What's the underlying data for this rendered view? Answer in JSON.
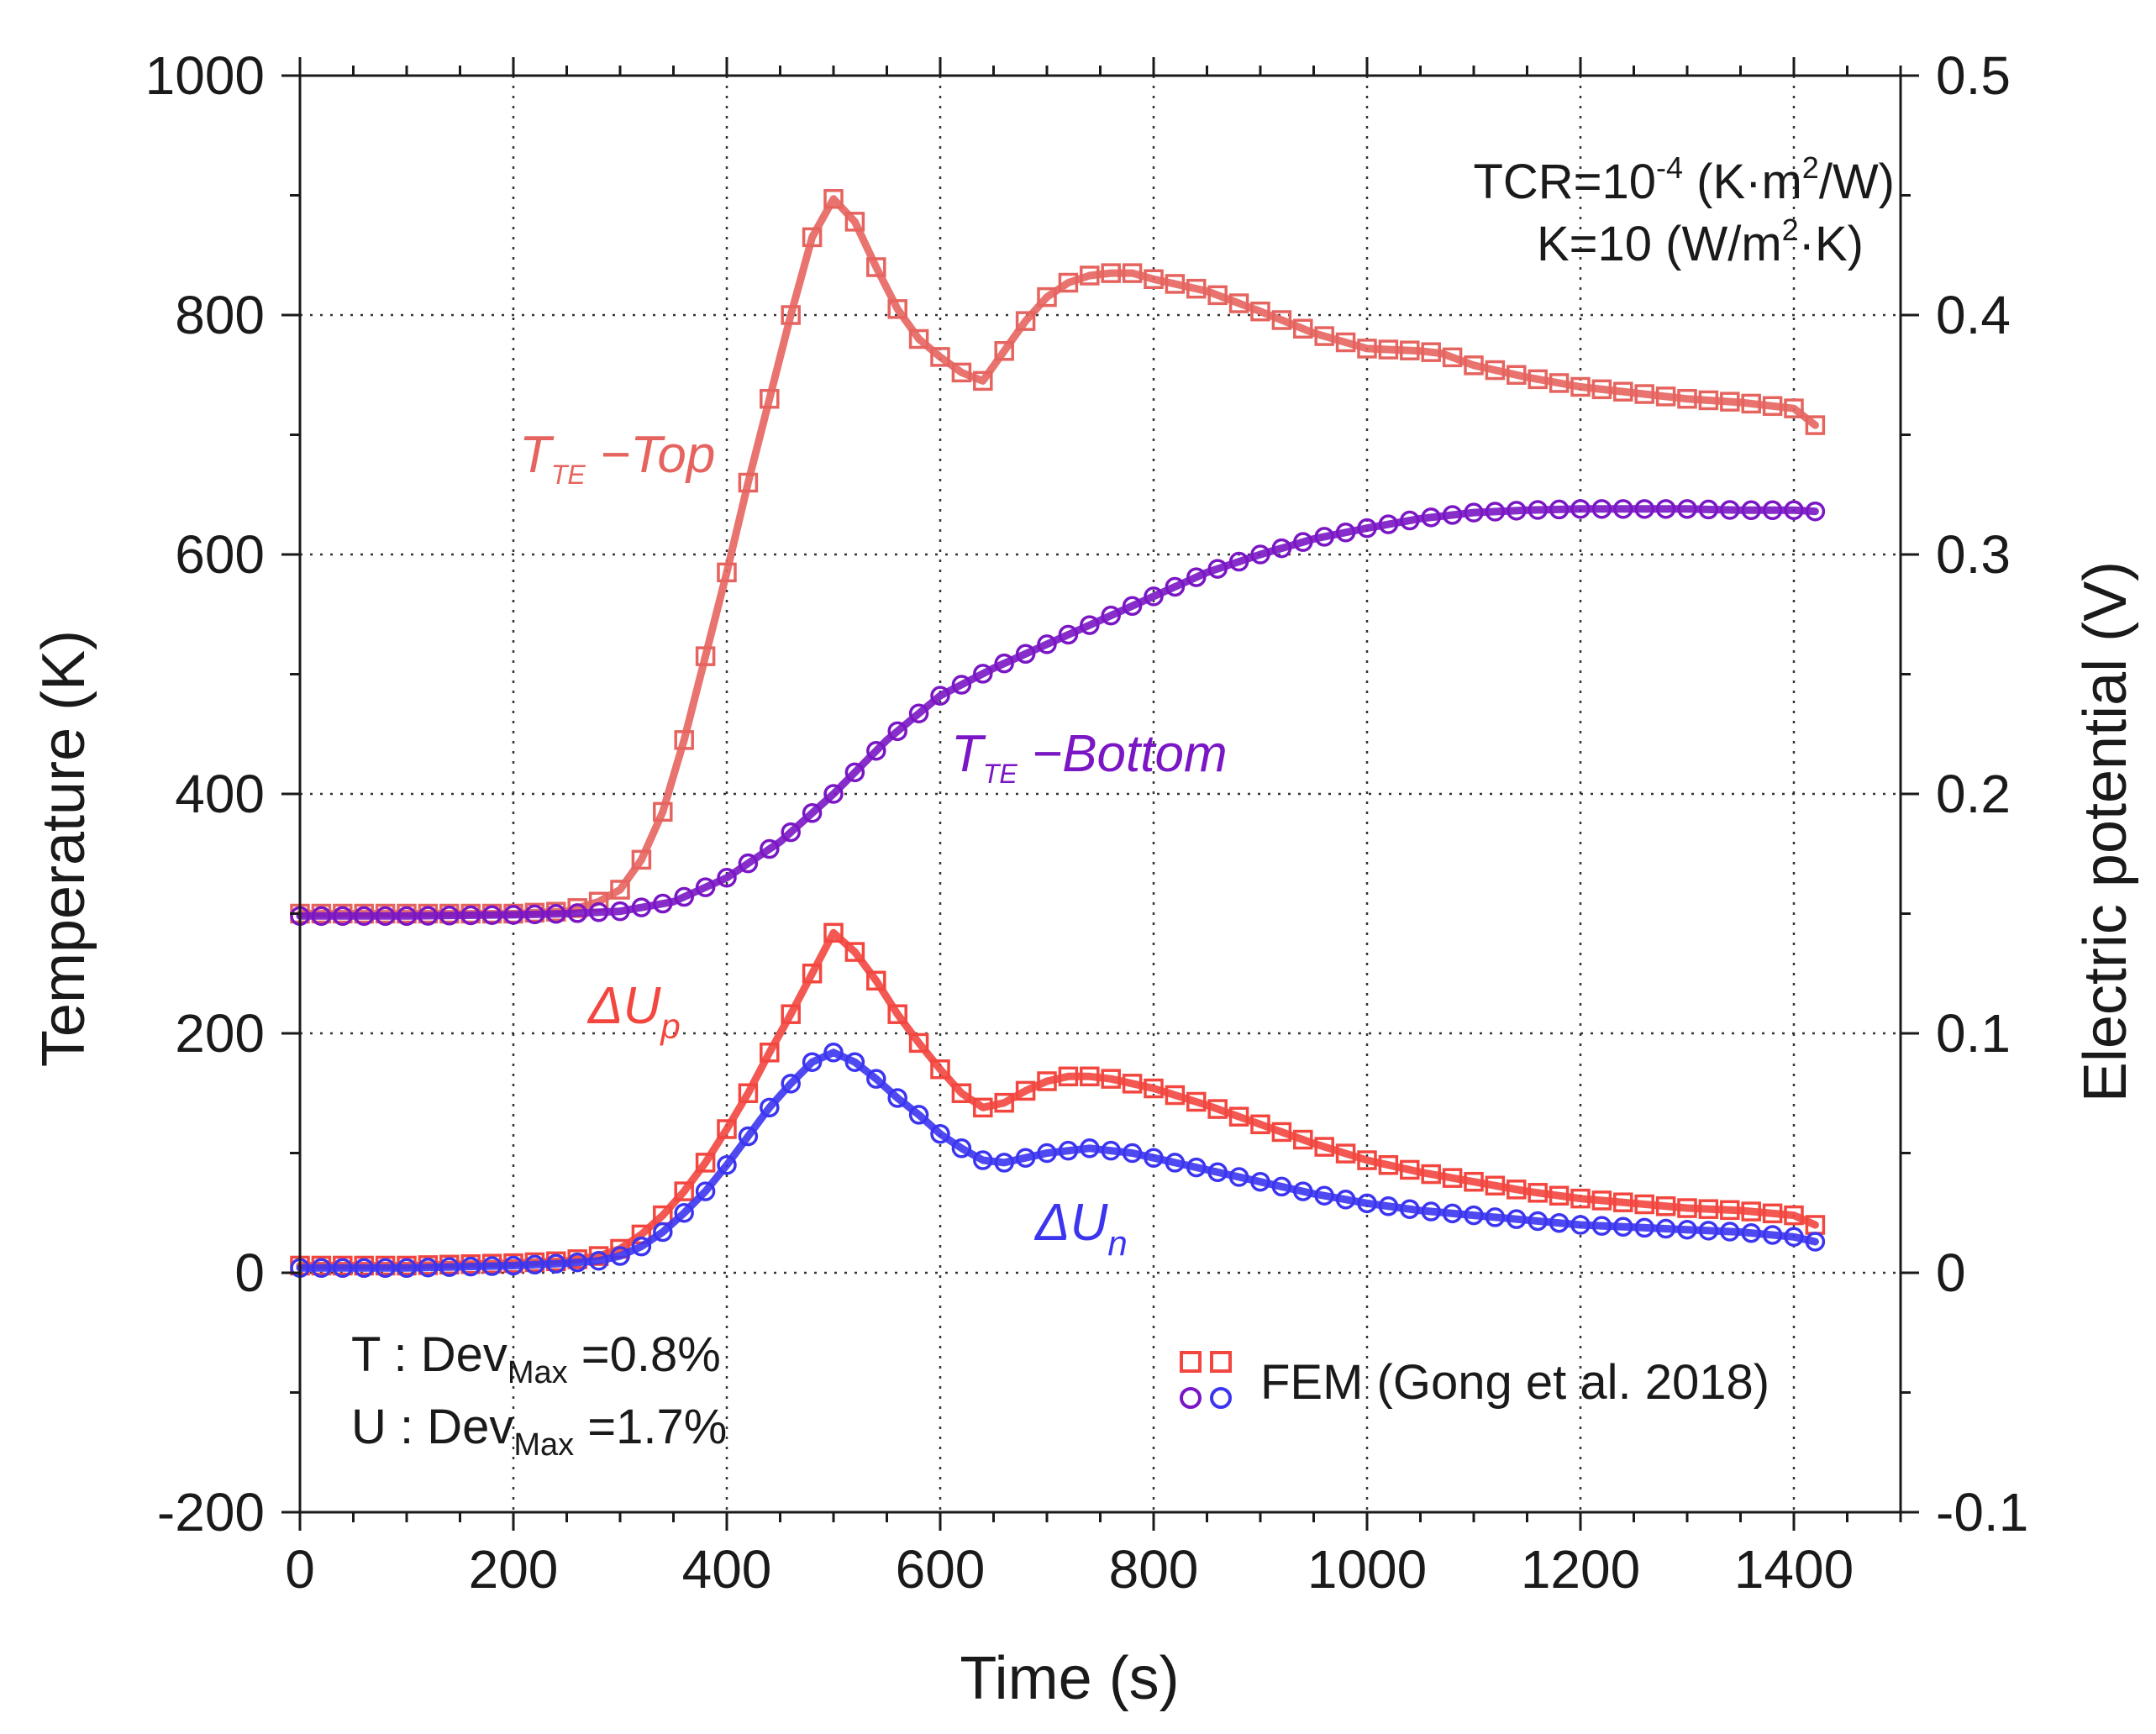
{
  "colors": {
    "t_top": "#e5645f",
    "t_bottom": "#7a16c4",
    "du_p": "#f2463f",
    "du_n": "#3c35f0",
    "grid": "#333333",
    "axis": "#1a1a1a"
  },
  "labels": {
    "t_top_main": "T",
    "t_top_sub": "TE",
    "t_top_rest": " −Top",
    "t_bottom_main": "T",
    "t_bottom_sub": "TE",
    "t_bottom_rest": " −Bottom",
    "du_p_main": "ΔU",
    "du_p_sub": "p",
    "du_n_main": "ΔU",
    "du_n_sub": "n",
    "tcr_prefix": "TCR=10",
    "tcr_exp": "-4",
    "tcr_mid": " (K·m",
    "tcr_exp2": "2",
    "tcr_suffix": "/W)",
    "k_prefix": "K=10 (W/m",
    "k_exp": "2",
    "k_suffix": "·K)",
    "dev_t_prefix": "T : Dev",
    "dev_t_sub": "Max",
    "dev_t_value": " =0.8%",
    "dev_u_prefix": "U : Dev",
    "dev_u_sub": "Max",
    "dev_u_value": " =1.7%",
    "legend_text": "FEM (Gong et al. 2018)"
  },
  "chart_data": {
    "type": "line",
    "xlabel": "Time (s)",
    "ylabel": "Temperature (K)",
    "y2label": "Electric potential (V)",
    "xlim": [
      0,
      1500
    ],
    "ylim": [
      -200,
      1000
    ],
    "y2lim": [
      -0.1,
      0.5
    ],
    "xticks": [
      0,
      200,
      400,
      600,
      800,
      1000,
      1200,
      1400
    ],
    "yticks": [
      -200,
      0,
      200,
      400,
      600,
      800,
      1000
    ],
    "yticklabels": [
      "-200",
      "0",
      "200",
      "400",
      "600",
      "800",
      "1000"
    ],
    "y2ticks": [
      -0.1,
      0,
      0.1,
      0.2,
      0.3,
      0.4,
      0.5
    ],
    "y2ticklabels": [
      "-0.1",
      "0",
      "0.1",
      "0.2",
      "0.3",
      "0.4",
      "0.5"
    ],
    "grid": true,
    "legend": "FEM (Gong et al. 2018)",
    "series": [
      {
        "name": "T_TE -Top",
        "axis": "left",
        "marker": "square",
        "x": [
          0,
          100,
          200,
          250,
          280,
          300,
          320,
          340,
          360,
          380,
          400,
          420,
          440,
          460,
          480,
          500,
          520,
          540,
          560,
          580,
          600,
          620,
          640,
          660,
          680,
          700,
          720,
          740,
          760,
          780,
          800,
          850,
          900,
          950,
          1000,
          1050,
          1070,
          1100,
          1150,
          1200,
          1250,
          1300,
          1350,
          1400,
          1420
        ],
        "y": [
          300,
          300,
          300,
          302,
          310,
          320,
          345,
          385,
          445,
          515,
          585,
          660,
          730,
          800,
          865,
          897,
          878,
          840,
          805,
          780,
          765,
          752,
          745,
          770,
          795,
          815,
          827,
          833,
          835,
          835,
          830,
          820,
          803,
          785,
          772,
          770,
          768,
          758,
          748,
          740,
          735,
          730,
          727,
          722,
          708
        ]
      },
      {
        "name": "T_TE -Bottom",
        "axis": "left",
        "marker": "circle",
        "x": [
          0,
          100,
          200,
          250,
          300,
          350,
          400,
          450,
          500,
          550,
          600,
          650,
          700,
          750,
          800,
          850,
          900,
          950,
          1000,
          1050,
          1100,
          1150,
          1200,
          1250,
          1300,
          1350,
          1400,
          1420
        ],
        "y": [
          298,
          298,
          299,
          300,
          302,
          310,
          330,
          360,
          400,
          445,
          482,
          505,
          525,
          545,
          565,
          585,
          600,
          613,
          622,
          630,
          635,
          637,
          638,
          638,
          638,
          637,
          637,
          636
        ]
      },
      {
        "name": "ΔUp",
        "axis": "right",
        "marker": "square",
        "x": [
          0,
          100,
          200,
          250,
          280,
          300,
          320,
          340,
          360,
          380,
          400,
          420,
          440,
          460,
          480,
          500,
          520,
          540,
          560,
          580,
          600,
          620,
          640,
          660,
          680,
          700,
          720,
          740,
          760,
          780,
          800,
          850,
          900,
          950,
          1000,
          1050,
          1100,
          1150,
          1200,
          1250,
          1300,
          1350,
          1400,
          1420
        ],
        "y": [
          0.003,
          0.003,
          0.004,
          0.005,
          0.007,
          0.01,
          0.016,
          0.024,
          0.034,
          0.046,
          0.06,
          0.075,
          0.092,
          0.108,
          0.125,
          0.142,
          0.134,
          0.122,
          0.108,
          0.096,
          0.085,
          0.075,
          0.069,
          0.071,
          0.076,
          0.08,
          0.082,
          0.082,
          0.081,
          0.079,
          0.077,
          0.07,
          0.062,
          0.054,
          0.047,
          0.042,
          0.038,
          0.034,
          0.031,
          0.029,
          0.027,
          0.026,
          0.024,
          0.02
        ]
      },
      {
        "name": "ΔUn",
        "axis": "right",
        "marker": "circle",
        "x": [
          0,
          100,
          200,
          250,
          280,
          300,
          320,
          340,
          360,
          380,
          400,
          420,
          440,
          460,
          480,
          500,
          520,
          540,
          560,
          580,
          600,
          620,
          640,
          660,
          680,
          700,
          720,
          740,
          760,
          780,
          800,
          850,
          900,
          950,
          1000,
          1050,
          1100,
          1150,
          1200,
          1250,
          1300,
          1350,
          1400,
          1420
        ],
        "y": [
          0.002,
          0.002,
          0.003,
          0.004,
          0.005,
          0.007,
          0.011,
          0.017,
          0.025,
          0.034,
          0.045,
          0.057,
          0.069,
          0.079,
          0.088,
          0.092,
          0.088,
          0.081,
          0.073,
          0.066,
          0.058,
          0.052,
          0.047,
          0.046,
          0.048,
          0.05,
          0.051,
          0.052,
          0.051,
          0.05,
          0.048,
          0.043,
          0.038,
          0.033,
          0.029,
          0.026,
          0.024,
          0.022,
          0.02,
          0.019,
          0.018,
          0.017,
          0.015,
          0.013
        ]
      }
    ]
  }
}
